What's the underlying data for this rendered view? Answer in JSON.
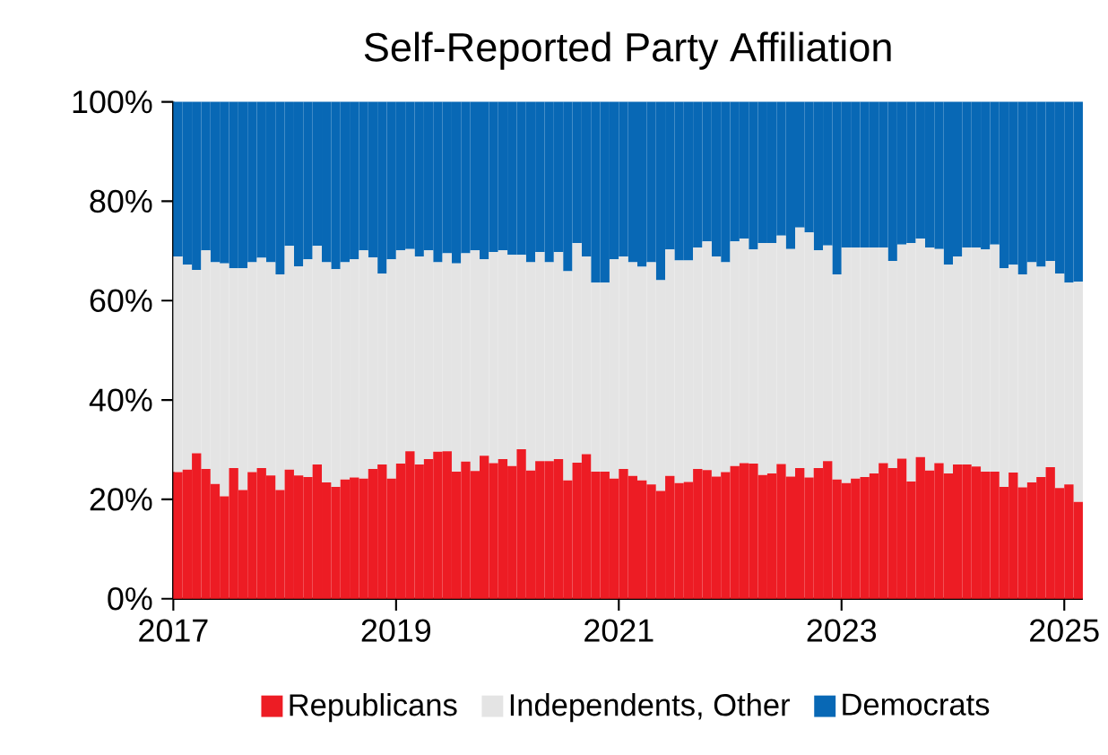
{
  "chart_data": {
    "type": "bar",
    "title": "Self-Reported Party Affiliation",
    "stacked": true,
    "legend": "bottom",
    "grid": false,
    "x": [
      "2017-01",
      "2017-02",
      "2017-03",
      "2017-04",
      "2017-05",
      "2017-06",
      "2017-07",
      "2017-08",
      "2017-09",
      "2017-10",
      "2017-11",
      "2017-12",
      "2018-01",
      "2018-02",
      "2018-03",
      "2018-04",
      "2018-05",
      "2018-06",
      "2018-07",
      "2018-08",
      "2018-09",
      "2018-10",
      "2018-11",
      "2018-12",
      "2019-01",
      "2019-02",
      "2019-03",
      "2019-04",
      "2019-05",
      "2019-06",
      "2019-07",
      "2019-08",
      "2019-09",
      "2019-10",
      "2019-11",
      "2019-12",
      "2020-01",
      "2020-02",
      "2020-03",
      "2020-04",
      "2020-05",
      "2020-06",
      "2020-07",
      "2020-08",
      "2020-09",
      "2020-10",
      "2020-11",
      "2020-12",
      "2021-01",
      "2021-02",
      "2021-03",
      "2021-04",
      "2021-05",
      "2021-06",
      "2021-07",
      "2021-08",
      "2021-09",
      "2021-10",
      "2021-11",
      "2021-12",
      "2022-01",
      "2022-02",
      "2022-03",
      "2022-04",
      "2022-05",
      "2022-06",
      "2022-07",
      "2022-08",
      "2022-09",
      "2022-10",
      "2022-11",
      "2022-12",
      "2023-01",
      "2023-02",
      "2023-03",
      "2023-04",
      "2023-05",
      "2023-06",
      "2023-07",
      "2023-08",
      "2023-09",
      "2023-10",
      "2023-11",
      "2023-12",
      "2024-01",
      "2024-02",
      "2024-03",
      "2024-04",
      "2024-05",
      "2024-06",
      "2024-07",
      "2024-08",
      "2024-09",
      "2024-10",
      "2024-11",
      "2024-12",
      "2025-01",
      "2025-02"
    ],
    "xlim": [
      "2017-01",
      "2025-03"
    ],
    "xticks": [
      "2017",
      "2019",
      "2021",
      "2023",
      "2025"
    ],
    "ylim": [
      0,
      100
    ],
    "yticks": [
      {
        "value": 0,
        "label": "0%"
      },
      {
        "value": 20,
        "label": "20%"
      },
      {
        "value": 40,
        "label": "40%"
      },
      {
        "value": 60,
        "label": "60%"
      },
      {
        "value": 80,
        "label": "80%"
      },
      {
        "value": 100,
        "label": "100%"
      }
    ],
    "series": [
      {
        "name": "Republicans",
        "color": "#ed1c24",
        "values": [
          25.5,
          26.0,
          29.3,
          26.1,
          23.1,
          20.6,
          26.3,
          21.9,
          25.5,
          26.3,
          24.8,
          21.9,
          26.0,
          24.8,
          24.5,
          27.0,
          23.4,
          22.5,
          24.0,
          24.4,
          24.2,
          26.1,
          27.0,
          24.2,
          27.2,
          29.7,
          27.0,
          28.1,
          29.6,
          29.7,
          25.6,
          27.6,
          25.7,
          28.8,
          27.3,
          28.1,
          26.7,
          30.1,
          25.8,
          27.7,
          27.7,
          28.1,
          23.8,
          27.4,
          29.1,
          25.6,
          25.6,
          24.2,
          26.1,
          24.7,
          23.8,
          23.0,
          21.7,
          24.7,
          23.3,
          23.5,
          26.1,
          25.9,
          24.6,
          25.5,
          26.7,
          27.3,
          27.2,
          24.9,
          25.2,
          27.1,
          24.6,
          26.3,
          24.4,
          26.3,
          27.7,
          24.0,
          23.3,
          24.2,
          24.5,
          25.2,
          27.3,
          26.3,
          28.2,
          23.6,
          28.5,
          25.8,
          27.3,
          25.2,
          27.0,
          27.0,
          26.6,
          25.6,
          25.6,
          22.5,
          25.4,
          22.4,
          23.4,
          24.5,
          26.5,
          22.3,
          23.0,
          19.5
        ]
      },
      {
        "name": "Independents, Other",
        "color": "#e4e4e4",
        "values": [
          43.4,
          41.2,
          36.9,
          44.0,
          44.6,
          46.9,
          40.2,
          44.6,
          42.2,
          42.3,
          42.9,
          43.4,
          45.0,
          42.1,
          43.8,
          44.0,
          44.3,
          43.8,
          43.7,
          43.9,
          45.9,
          42.6,
          38.4,
          44.1,
          42.9,
          40.7,
          41.9,
          42.0,
          38.1,
          39.8,
          41.9,
          41.9,
          44.4,
          39.5,
          42.5,
          42.0,
          42.5,
          39.1,
          41.9,
          42.1,
          40.0,
          41.7,
          42.1,
          44.2,
          39.8,
          38.0,
          38.0,
          44.1,
          42.8,
          43.0,
          43.0,
          44.7,
          42.4,
          45.6,
          44.8,
          44.6,
          44.6,
          46.0,
          44.3,
          42.2,
          45.2,
          45.2,
          43.1,
          46.7,
          46.4,
          46.0,
          45.8,
          48.4,
          49.3,
          43.8,
          43.4,
          41.3,
          47.4,
          46.5,
          46.2,
          45.5,
          43.4,
          41.7,
          43.1,
          48.0,
          44.0,
          44.9,
          43.1,
          42.0,
          41.9,
          43.7,
          44.1,
          44.7,
          45.7,
          44.0,
          41.8,
          42.9,
          44.3,
          42.3,
          41.5,
          43.1,
          40.6,
          44.3
        ]
      },
      {
        "name": "Democrats",
        "color": "#0868b5",
        "values": [
          31.1,
          32.8,
          33.8,
          29.9,
          32.3,
          32.5,
          33.5,
          33.5,
          32.3,
          31.4,
          32.3,
          34.7,
          29.0,
          33.1,
          31.7,
          29.0,
          32.3,
          33.7,
          32.3,
          31.7,
          29.9,
          31.3,
          34.6,
          31.7,
          29.9,
          29.6,
          31.1,
          29.9,
          32.3,
          30.5,
          32.5,
          30.5,
          29.9,
          31.7,
          30.2,
          29.9,
          30.8,
          30.8,
          32.3,
          30.2,
          32.3,
          30.2,
          34.1,
          28.4,
          31.1,
          36.4,
          36.4,
          31.7,
          31.1,
          32.3,
          33.2,
          32.3,
          35.9,
          29.7,
          31.9,
          31.9,
          29.3,
          28.1,
          31.1,
          32.3,
          28.1,
          27.5,
          29.7,
          28.4,
          28.4,
          26.9,
          29.6,
          25.3,
          26.3,
          29.9,
          28.9,
          34.7,
          29.3,
          29.3,
          29.3,
          29.3,
          29.3,
          32.0,
          28.7,
          28.4,
          27.5,
          29.3,
          29.6,
          32.8,
          31.1,
          29.3,
          29.3,
          29.7,
          28.7,
          33.5,
          32.8,
          34.7,
          32.3,
          33.2,
          32.0,
          34.6,
          36.4,
          36.2
        ]
      }
    ]
  }
}
